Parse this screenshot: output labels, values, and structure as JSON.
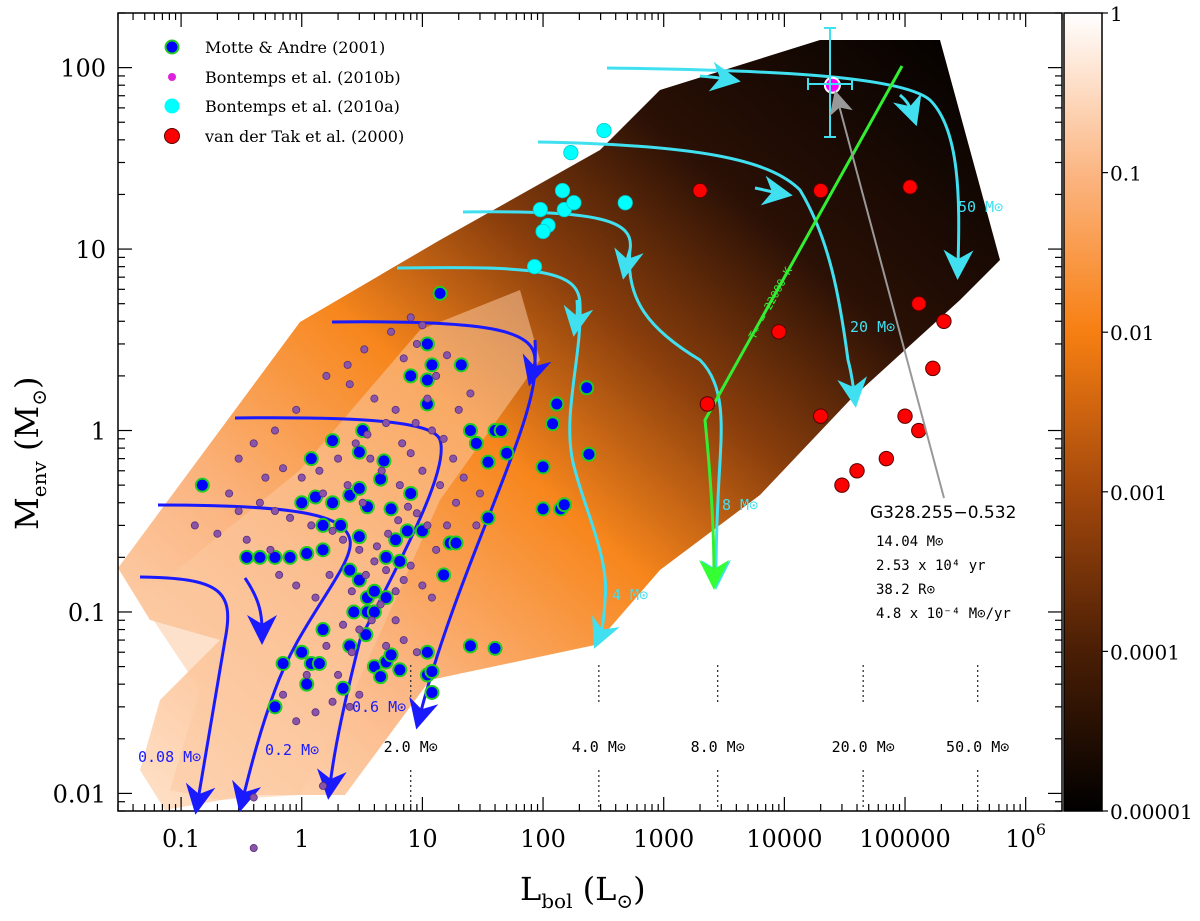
{
  "chart_data": {
    "type": "scatter",
    "title": "",
    "xlabel": "L_bol (L_sun)",
    "ylabel": "M_env (M_sun)",
    "xscale": "log",
    "yscale": "log",
    "xlim": [
      0.03,
      2000000
    ],
    "ylim": [
      0.008,
      200
    ],
    "x_tick_labels": [
      "0.1",
      "1",
      "10",
      "100",
      "1000",
      "10000",
      "100000",
      "10^6"
    ],
    "y_tick_labels": [
      "0.01",
      "0.1",
      "1",
      "10",
      "100"
    ],
    "colorbar": {
      "range": [
        1e-05,
        1
      ],
      "tick_labels": [
        "1",
        "0.1",
        "0.01",
        "0.001",
        "0.0001",
        "0.00001"
      ],
      "colors": [
        "#000000",
        "#4a1e05",
        "#a3480c",
        "#f77f12",
        "#fbb683",
        "#ffffff"
      ]
    },
    "legend": {
      "placement": "top-left",
      "entries": [
        "Motte & Andre (2001)",
        "Bontemps et al. (2010b)",
        "Bontemps et al. (2010a)",
        "van der Tak et al. (2000)"
      ]
    },
    "series": [
      {
        "name": "Motte & Andre (2001)",
        "color": "#0000ff",
        "edge": "#22cc22",
        "points": [
          [
            0.15,
            0.5
          ],
          [
            0.6,
            0.03
          ],
          [
            0.7,
            0.052
          ],
          [
            1.0,
            0.06
          ],
          [
            1.2,
            0.052
          ],
          [
            1.4,
            0.052
          ],
          [
            1.1,
            0.04
          ],
          [
            0.35,
            0.2
          ],
          [
            0.45,
            0.2
          ],
          [
            0.6,
            0.2
          ],
          [
            0.8,
            0.2
          ],
          [
            1.1,
            0.21
          ],
          [
            1.5,
            0.22
          ],
          [
            1.0,
            0.4
          ],
          [
            1.3,
            0.43
          ],
          [
            1.8,
            0.4
          ],
          [
            2.5,
            0.44
          ],
          [
            3.5,
            0.38
          ],
          [
            5.5,
            0.37
          ],
          [
            3,
            0.48
          ],
          [
            4.5,
            0.54
          ],
          [
            8,
            0.45
          ],
          [
            1.5,
            0.3
          ],
          [
            2.1,
            0.3
          ],
          [
            2.5,
            0.17
          ],
          [
            3,
            0.15
          ],
          [
            2.7,
            0.1
          ],
          [
            3.5,
            0.1
          ],
          [
            3.5,
            0.12
          ],
          [
            4,
            0.13
          ],
          [
            5,
            0.12
          ],
          [
            4,
            0.1
          ],
          [
            3.4,
            0.075
          ],
          [
            4,
            0.05
          ],
          [
            5,
            0.053
          ],
          [
            4.5,
            0.044
          ],
          [
            5.5,
            0.058
          ],
          [
            6.5,
            0.048
          ],
          [
            5,
            0.2
          ],
          [
            6.5,
            0.19
          ],
          [
            6,
            0.25
          ],
          [
            7.5,
            0.28
          ],
          [
            3,
            0.26
          ],
          [
            2.5,
            0.065
          ],
          [
            2.2,
            0.038
          ],
          [
            1.5,
            0.08
          ],
          [
            11,
            0.06
          ],
          [
            11,
            0.045
          ],
          [
            12,
            0.036
          ],
          [
            12,
            0.047
          ],
          [
            25,
            0.065
          ],
          [
            40,
            0.063
          ],
          [
            17,
            0.24
          ],
          [
            19,
            0.24
          ],
          [
            35,
            0.33
          ],
          [
            15,
            0.16
          ],
          [
            10,
            0.28
          ],
          [
            1.8,
            0.88
          ],
          [
            3,
            0.76
          ],
          [
            3.2,
            1.0
          ],
          [
            4.8,
            0.68
          ],
          [
            1.2,
            0.7
          ],
          [
            8,
            2.0
          ],
          [
            11,
            1.9
          ],
          [
            12,
            2.3
          ],
          [
            21,
            2.3
          ],
          [
            11,
            3.0
          ],
          [
            11,
            1.4
          ],
          [
            14,
            5.7
          ],
          [
            25,
            1.0
          ],
          [
            40,
            1.0
          ],
          [
            28,
            0.85
          ],
          [
            35,
            0.67
          ],
          [
            50,
            0.75
          ],
          [
            45,
            1.0
          ],
          [
            100,
            0.63
          ],
          [
            100,
            0.37
          ],
          [
            140,
            0.37
          ],
          [
            150,
            0.39
          ],
          [
            230,
            1.72
          ],
          [
            240,
            0.74
          ],
          [
            130,
            1.4
          ],
          [
            120,
            1.09
          ]
        ]
      },
      {
        "name": "Bontemps et al. (2010a)",
        "color": "#00ffff",
        "points": [
          [
            85,
            8.0
          ],
          [
            110,
            13.5
          ],
          [
            100,
            12.5
          ],
          [
            95,
            16.5
          ],
          [
            150,
            16.5
          ],
          [
            145,
            21
          ],
          [
            170,
            34
          ],
          [
            180,
            18
          ],
          [
            320,
            45
          ],
          [
            480,
            18
          ]
        ]
      },
      {
        "name": "van der Tak et al. (2000)",
        "color": "#ff0000",
        "points": [
          [
            2000,
            21
          ],
          [
            20000,
            21
          ],
          [
            110000,
            22
          ],
          [
            9000,
            3.5
          ],
          [
            2300,
            1.4
          ],
          [
            20000,
            1.2
          ],
          [
            130000,
            5.0
          ],
          [
            210000,
            4.0
          ],
          [
            170000,
            2.2
          ],
          [
            100000,
            1.2
          ],
          [
            130000,
            1.0
          ],
          [
            70000,
            0.7
          ],
          [
            40000,
            0.6
          ],
          [
            30000,
            0.5
          ]
        ]
      },
      {
        "name": "G328.255-0.532",
        "color": "#ff00ff",
        "points": [
          [
            25000,
            80
          ]
        ]
      }
    ],
    "blue_tracks_labels": [
      "0.08 M_sun",
      "0.2 M_sun",
      "0.6 M_sun"
    ],
    "cyan_tracks_labels": [
      "4 M_sun",
      "8 M_sun",
      "20 M_sun",
      "50 M_sun"
    ],
    "green_line_label": "T_* = 22000 K",
    "bottom_mass_labels": [
      {
        "text": "2.0 M_sun",
        "L": 8
      },
      {
        "text": "4.0 M_sun",
        "L": 290
      },
      {
        "text": "8.0 M_sun",
        "L": 2800
      },
      {
        "text": "20.0 M_sun",
        "L": 45000
      },
      {
        "text": "50.0 M_sun",
        "L": 400000
      }
    ],
    "annotation": {
      "name": "G328.255−0.532",
      "mass": "14.04 M_sun",
      "age": "2.53 x 10^4 yr",
      "radius": "38.2 R_sun",
      "rate": "4.8 x 10^-4 M_sun/yr"
    }
  }
}
